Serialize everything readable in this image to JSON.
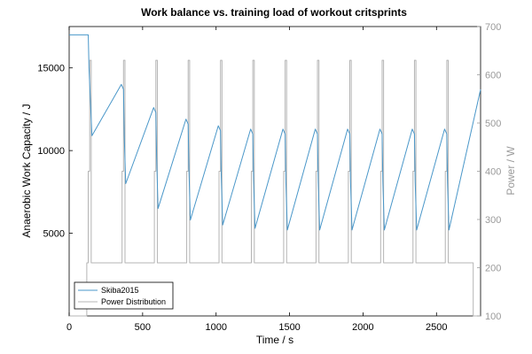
{
  "chart_data": {
    "type": "line",
    "title": "Work balance vs. training load of workout  critsprints",
    "xlabel": "Time / s",
    "ylabel": "Anaerobic Work Capacity / J",
    "y2label": "Power / W",
    "xlim": [
      0,
      2800
    ],
    "ylim": [
      0,
      17500
    ],
    "y2lim": [
      100,
      700
    ],
    "xticks": [
      0,
      500,
      1000,
      1500,
      2000,
      2500
    ],
    "yticks": [
      5000,
      10000,
      15000
    ],
    "y2ticks": [
      100,
      200,
      300,
      400,
      500,
      600,
      700
    ],
    "legend_position": "bottom-left",
    "colors": {
      "Skiba2015": "#4a97c9",
      "Power Distribution": "#b4b4b4"
    },
    "series": [
      {
        "name": "Skiba2015",
        "axis": "left",
        "x": [
          0,
          130,
          135,
          155,
          355,
          370,
          375,
          385,
          575,
          590,
          595,
          605,
          795,
          810,
          815,
          825,
          1015,
          1030,
          1035,
          1045,
          1235,
          1250,
          1255,
          1265,
          1455,
          1470,
          1475,
          1485,
          1675,
          1690,
          1695,
          1705,
          1895,
          1910,
          1915,
          1925,
          2115,
          2130,
          2135,
          2145,
          2335,
          2350,
          2355,
          2365,
          2555,
          2570,
          2575,
          2585,
          2800
        ],
        "y": [
          17000,
          17000,
          15000,
          10900,
          14000,
          13700,
          10900,
          8000,
          12600,
          12300,
          9700,
          6500,
          11900,
          11600,
          8900,
          5800,
          11500,
          11200,
          8500,
          5500,
          11300,
          11000,
          8200,
          5300,
          11300,
          11000,
          8100,
          5200,
          11300,
          11000,
          8100,
          5200,
          11300,
          11000,
          8100,
          5200,
          11300,
          11000,
          8100,
          5200,
          11300,
          11000,
          8100,
          5200,
          11300,
          11000,
          8100,
          5200,
          13700
        ]
      },
      {
        "name": "Power Distribution",
        "axis": "right",
        "x": [
          0,
          120,
          120,
          130,
          130,
          140,
          140,
          150,
          150,
          360,
          360,
          370,
          370,
          380,
          380,
          580,
          580,
          590,
          590,
          600,
          600,
          800,
          800,
          810,
          810,
          820,
          820,
          1020,
          1020,
          1030,
          1030,
          1040,
          1040,
          1240,
          1240,
          1250,
          1250,
          1260,
          1260,
          1460,
          1460,
          1470,
          1470,
          1480,
          1480,
          1680,
          1680,
          1690,
          1690,
          1700,
          1700,
          1900,
          1900,
          1910,
          1910,
          1920,
          1920,
          2120,
          2120,
          2130,
          2130,
          2140,
          2140,
          2340,
          2340,
          2350,
          2350,
          2360,
          2360,
          2560,
          2560,
          2570,
          2570,
          2580,
          2580,
          2750,
          2750,
          2800
        ],
        "y": [
          100,
          100,
          210,
          210,
          400,
          400,
          630,
          630,
          210,
          210,
          400,
          400,
          630,
          630,
          210,
          210,
          400,
          400,
          630,
          630,
          210,
          210,
          400,
          400,
          630,
          630,
          210,
          210,
          400,
          400,
          630,
          630,
          210,
          210,
          400,
          400,
          630,
          630,
          210,
          210,
          400,
          400,
          630,
          630,
          210,
          210,
          400,
          400,
          630,
          630,
          210,
          210,
          400,
          400,
          630,
          630,
          210,
          210,
          400,
          400,
          630,
          630,
          210,
          210,
          400,
          400,
          630,
          630,
          210,
          210,
          400,
          400,
          630,
          630,
          210,
          210,
          100,
          100
        ]
      }
    ]
  }
}
